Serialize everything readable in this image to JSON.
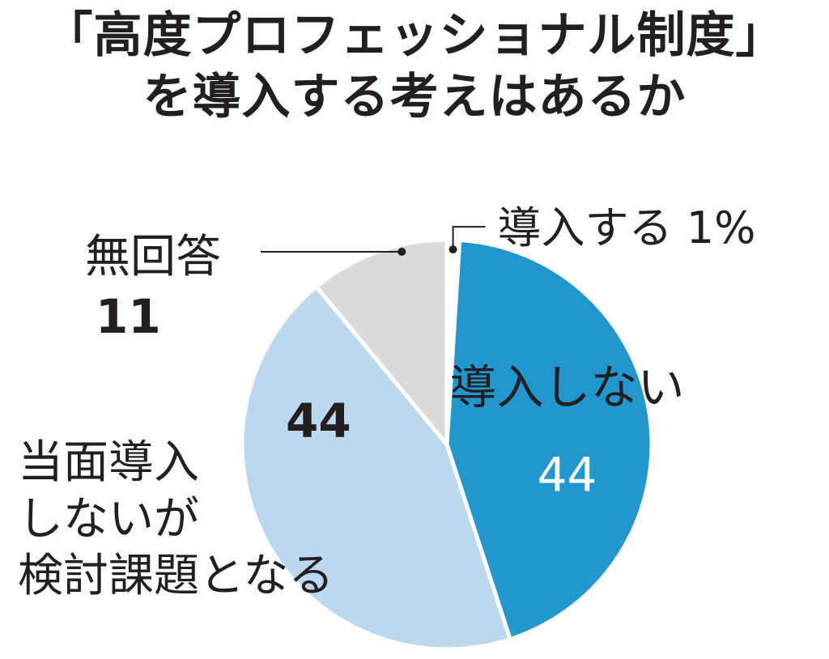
{
  "title": {
    "line1": "「高度プロフェッショナル制度」",
    "line2": "を導入する考えはあるか"
  },
  "chart_data": {
    "type": "pie",
    "title": "「高度プロフェッショナル制度」を導入する考えはあるか",
    "unit": "%",
    "start_angle_deg": 0,
    "direction": "clockwise",
    "slices": [
      {
        "label": "導入する",
        "value": 1,
        "value_label": "1%",
        "color": "#ffffff"
      },
      {
        "label": "導入しない",
        "value": 44,
        "value_label": "44",
        "color": "#2196cf"
      },
      {
        "label": "当面導入しないが検討課題となる",
        "label_lines": [
          "当面導入",
          "しないが",
          "検討課題となる"
        ],
        "value": 44,
        "value_label": "44",
        "color": "#bcd8ec"
      },
      {
        "label": "無回答",
        "value": 11,
        "value_label": "11",
        "color": "#d9dad9"
      }
    ]
  }
}
